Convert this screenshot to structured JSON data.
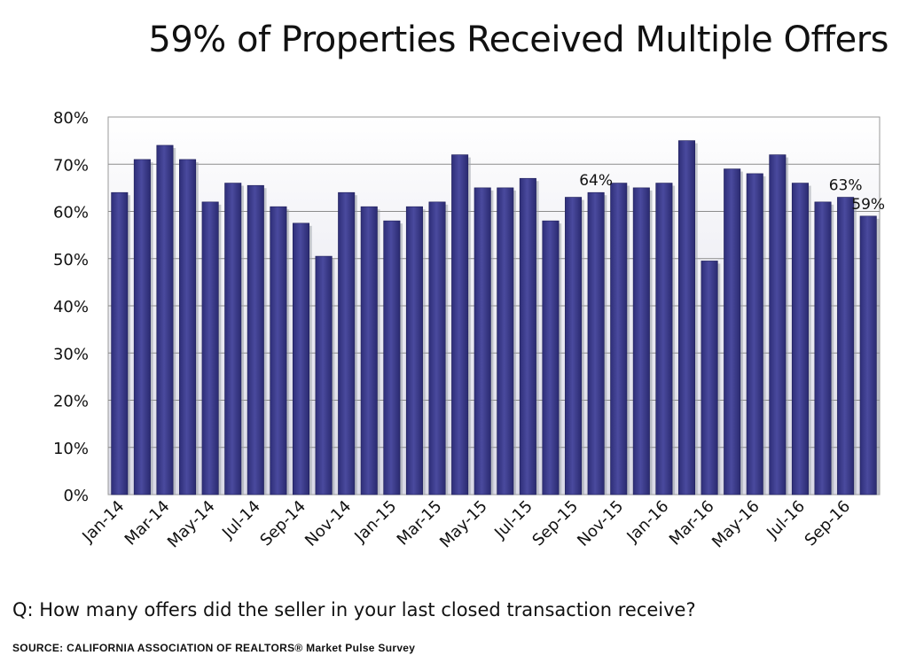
{
  "page": {
    "title": "59% of Properties Received Multiple Offers",
    "question": "Q: How many offers did the seller in your last closed transaction receive?",
    "source": "SOURCE:  CALIFORNIA ASSOCIATION OF REALTORS® Market Pulse Survey"
  },
  "chart_data": {
    "type": "bar",
    "title": "59% of Properties Received Multiple Offers",
    "xlabel": "",
    "ylabel": "",
    "categories": [
      "Jan-14",
      "Feb-14",
      "Mar-14",
      "Apr-14",
      "May-14",
      "Jun-14",
      "Jul-14",
      "Aug-14",
      "Sep-14",
      "Oct-14",
      "Nov-14",
      "Dec-14",
      "Jan-15",
      "Feb-15",
      "Mar-15",
      "Apr-15",
      "May-15",
      "Jun-15",
      "Jul-15",
      "Aug-15",
      "Sep-15",
      "Oct-15",
      "Nov-15",
      "Dec-15",
      "Jan-16",
      "Feb-16",
      "Mar-16",
      "Apr-16",
      "May-16",
      "Jun-16",
      "Jul-16",
      "Aug-16",
      "Sep-16",
      "Oct-16"
    ],
    "tick_labels": [
      "Jan-14",
      "Mar-14",
      "May-14",
      "Jul-14",
      "Sep-14",
      "Nov-14",
      "Jan-15",
      "Mar-15",
      "May-15",
      "Jul-15",
      "Sep-15",
      "Nov-15",
      "Jan-16",
      "Mar-16",
      "May-16",
      "Jul-16",
      "Sep-16"
    ],
    "values": [
      64,
      71,
      74,
      71,
      62,
      66,
      65.5,
      61,
      57.5,
      50.5,
      64,
      61,
      58,
      61,
      62,
      72,
      65,
      65,
      67,
      58,
      63,
      64,
      66,
      65,
      66,
      75,
      49.5,
      69,
      68,
      72,
      66,
      62,
      63,
      59
    ],
    "data_labels": [
      {
        "index": 21,
        "text": "64%"
      },
      {
        "index": 32,
        "text": "63%"
      },
      {
        "index": 33,
        "text": "59%"
      }
    ],
    "ylim": [
      0,
      80
    ],
    "yticks": [
      "0%",
      "10%",
      "20%",
      "30%",
      "40%",
      "50%",
      "60%",
      "70%",
      "80%"
    ],
    "grid": true,
    "bar_color": "#3d3d8c",
    "plot_background": "#e8e8f0"
  }
}
